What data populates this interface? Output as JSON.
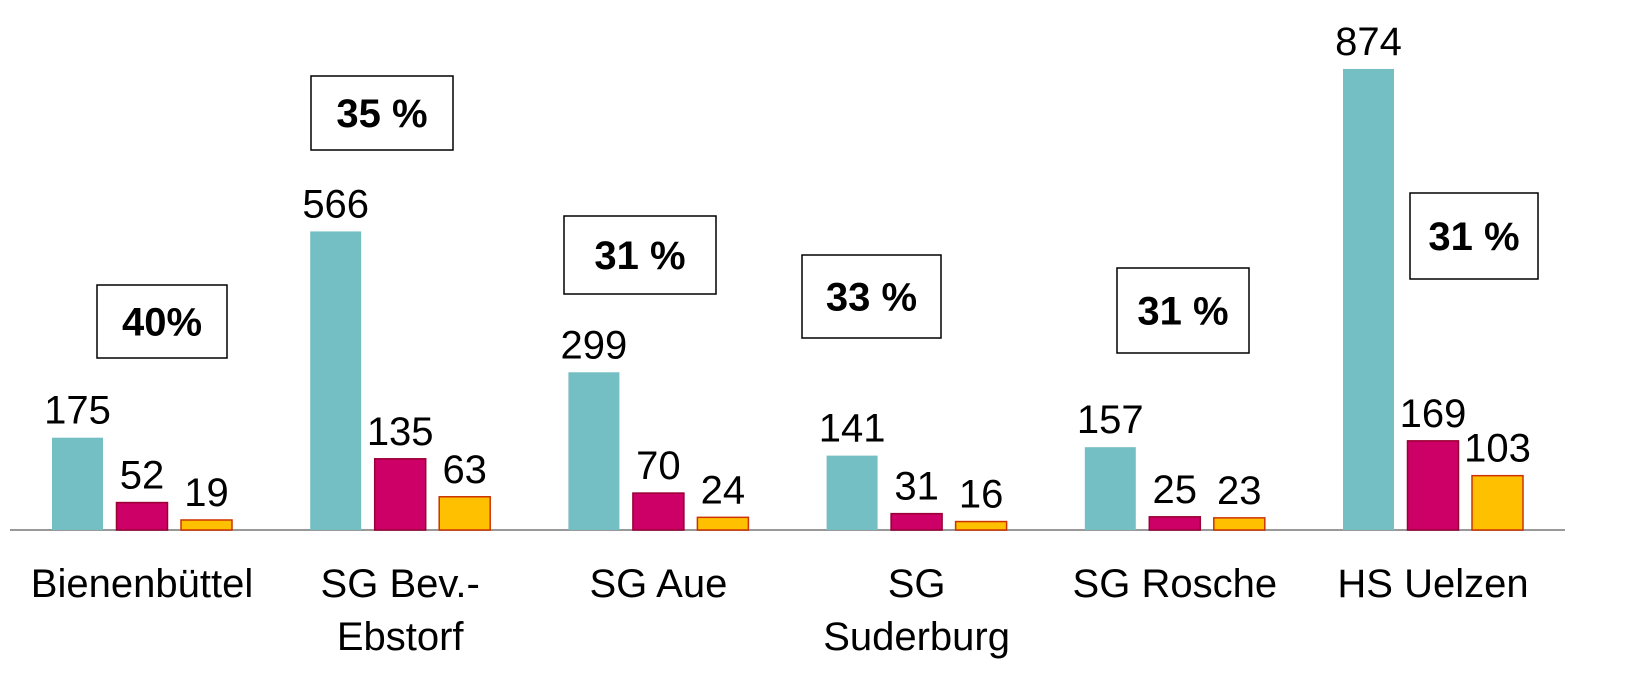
{
  "chart_data": {
    "type": "bar",
    "categories": [
      "Bienenbüttel",
      "SG Bev.-\nEbstorf",
      "SG Aue",
      "SG\nSuderburg",
      "SG Rosche",
      "HS Uelzen"
    ],
    "series": [
      {
        "color": "#74bfc4",
        "values": [
          175,
          566,
          299,
          141,
          157,
          874
        ]
      },
      {
        "color": "#cc0066",
        "values": [
          52,
          135,
          70,
          31,
          25,
          169
        ]
      },
      {
        "color": "#ffc000",
        "values": [
          19,
          63,
          24,
          16,
          23,
          103
        ]
      }
    ],
    "annotations": [
      "40%",
      "35 %",
      "31 %",
      "33 %",
      "31 %",
      "31 %"
    ],
    "ylim": [
      0,
      1000
    ]
  }
}
